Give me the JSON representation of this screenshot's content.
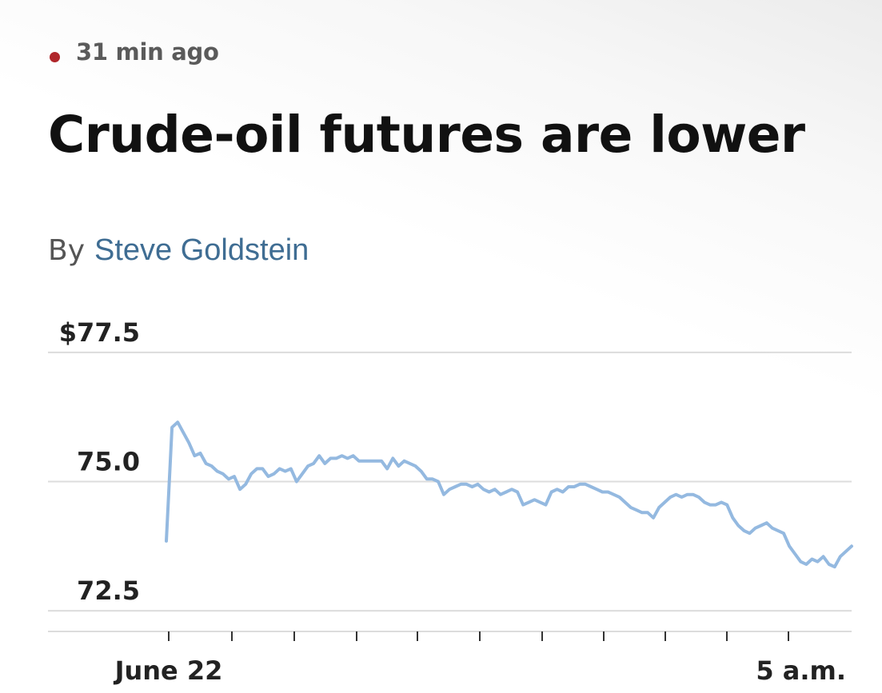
{
  "article": {
    "timestamp": "31 min ago",
    "live_dot_color": "#b0262b",
    "headline": "Crude-oil futures are lower",
    "byline_prefix": "By",
    "author": "Steve Goldstein",
    "author_color": "#3f6d93"
  },
  "chart_data": {
    "type": "line",
    "line_color": "#94b9e0",
    "grid": true,
    "y_tick_labels": [
      "$77.5",
      "75.0",
      "72.5"
    ],
    "y_ticks": [
      77.5,
      75.0,
      72.5
    ],
    "ylim": [
      72.1,
      77.7
    ],
    "x_tick_labels": [
      "June 22",
      "5 a.m."
    ],
    "series": [
      {
        "values": [
          73.85,
          76.05,
          76.15,
          75.95,
          75.75,
          75.5,
          75.55,
          75.35,
          75.3,
          75.2,
          75.15,
          75.05,
          75.1,
          74.85,
          74.95,
          75.15,
          75.25,
          75.25,
          75.1,
          75.15,
          75.25,
          75.2,
          75.25,
          75.0,
          75.15,
          75.3,
          75.35,
          75.5,
          75.35,
          75.45,
          75.45,
          75.5,
          75.45,
          75.5,
          75.4,
          75.4,
          75.4,
          75.4,
          75.4,
          75.25,
          75.45,
          75.3,
          75.4,
          75.35,
          75.3,
          75.2,
          75.05,
          75.05,
          75.0,
          74.75,
          74.85,
          74.9,
          74.95,
          74.95,
          74.9,
          74.95,
          74.85,
          74.8,
          74.85,
          74.75,
          74.8,
          74.85,
          74.8,
          74.55,
          74.6,
          74.65,
          74.6,
          74.55,
          74.8,
          74.85,
          74.8,
          74.9,
          74.9,
          74.95,
          74.95,
          74.9,
          74.85,
          74.8,
          74.8,
          74.75,
          74.7,
          74.6,
          74.5,
          74.45,
          74.4,
          74.4,
          74.3,
          74.5,
          74.6,
          74.7,
          74.75,
          74.7,
          74.75,
          74.75,
          74.7,
          74.6,
          74.55,
          74.55,
          74.6,
          74.55,
          74.3,
          74.15,
          74.05,
          74.0,
          74.1,
          74.15,
          74.2,
          74.1,
          74.05,
          74.0,
          73.75,
          73.6,
          73.45,
          73.4,
          73.5,
          73.45,
          73.55,
          73.4,
          73.35,
          73.55,
          73.65,
          73.75
        ]
      }
    ]
  }
}
